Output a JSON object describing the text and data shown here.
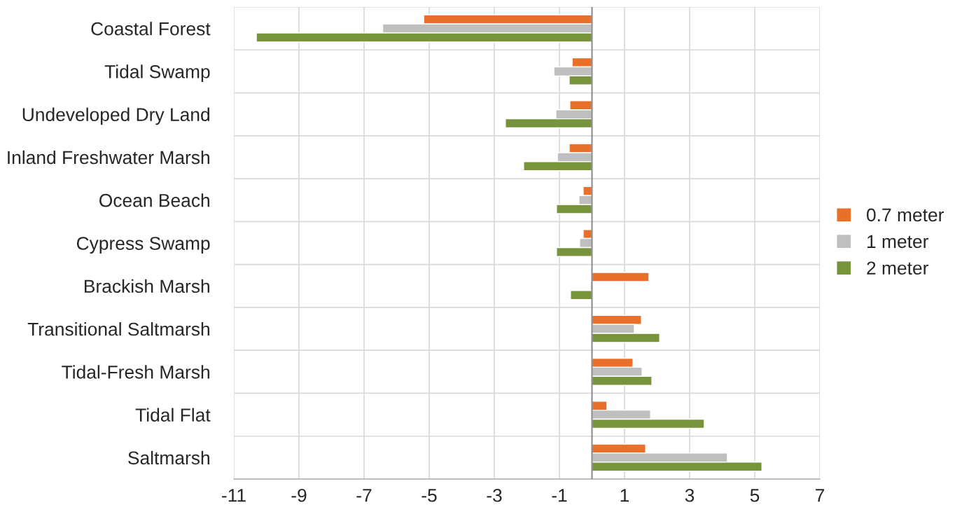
{
  "chart_data": {
    "type": "bar",
    "orientation": "horizontal",
    "categories": [
      "Coastal Forest",
      "Tidal Swamp",
      "Undeveloped Dry Land",
      "Inland Freshwater Marsh",
      "Ocean Beach",
      "Cypress Swamp",
      "Brackish Marsh",
      "Transitional Saltmarsh",
      "Tidal-Fresh Marsh",
      "Tidal Flat",
      "Saltmarsh"
    ],
    "series": [
      {
        "name": "0.7 meter",
        "color": "#e8702a",
        "values": [
          -5.17,
          -0.61,
          -0.68,
          -0.7,
          -0.27,
          -0.27,
          1.75,
          1.52,
          1.26,
          0.46,
          1.65
        ]
      },
      {
        "name": "1 meter",
        "color": "#bfbfbf",
        "values": [
          -6.43,
          -1.17,
          -1.11,
          -1.06,
          -0.4,
          -0.38,
          -0.05,
          1.3,
          1.54,
          1.8,
          4.16
        ]
      },
      {
        "name": "2 meter",
        "color": "#77933c",
        "values": [
          -10.31,
          -0.7,
          -2.66,
          -2.1,
          -1.09,
          -1.09,
          -0.66,
          2.08,
          1.84,
          3.45,
          5.22
        ]
      }
    ],
    "xlim": [
      -11,
      7
    ],
    "xticks": [
      -11,
      -9,
      -7,
      -5,
      -3,
      -1,
      1,
      3,
      5,
      7
    ],
    "grid": true,
    "legend": "right"
  }
}
